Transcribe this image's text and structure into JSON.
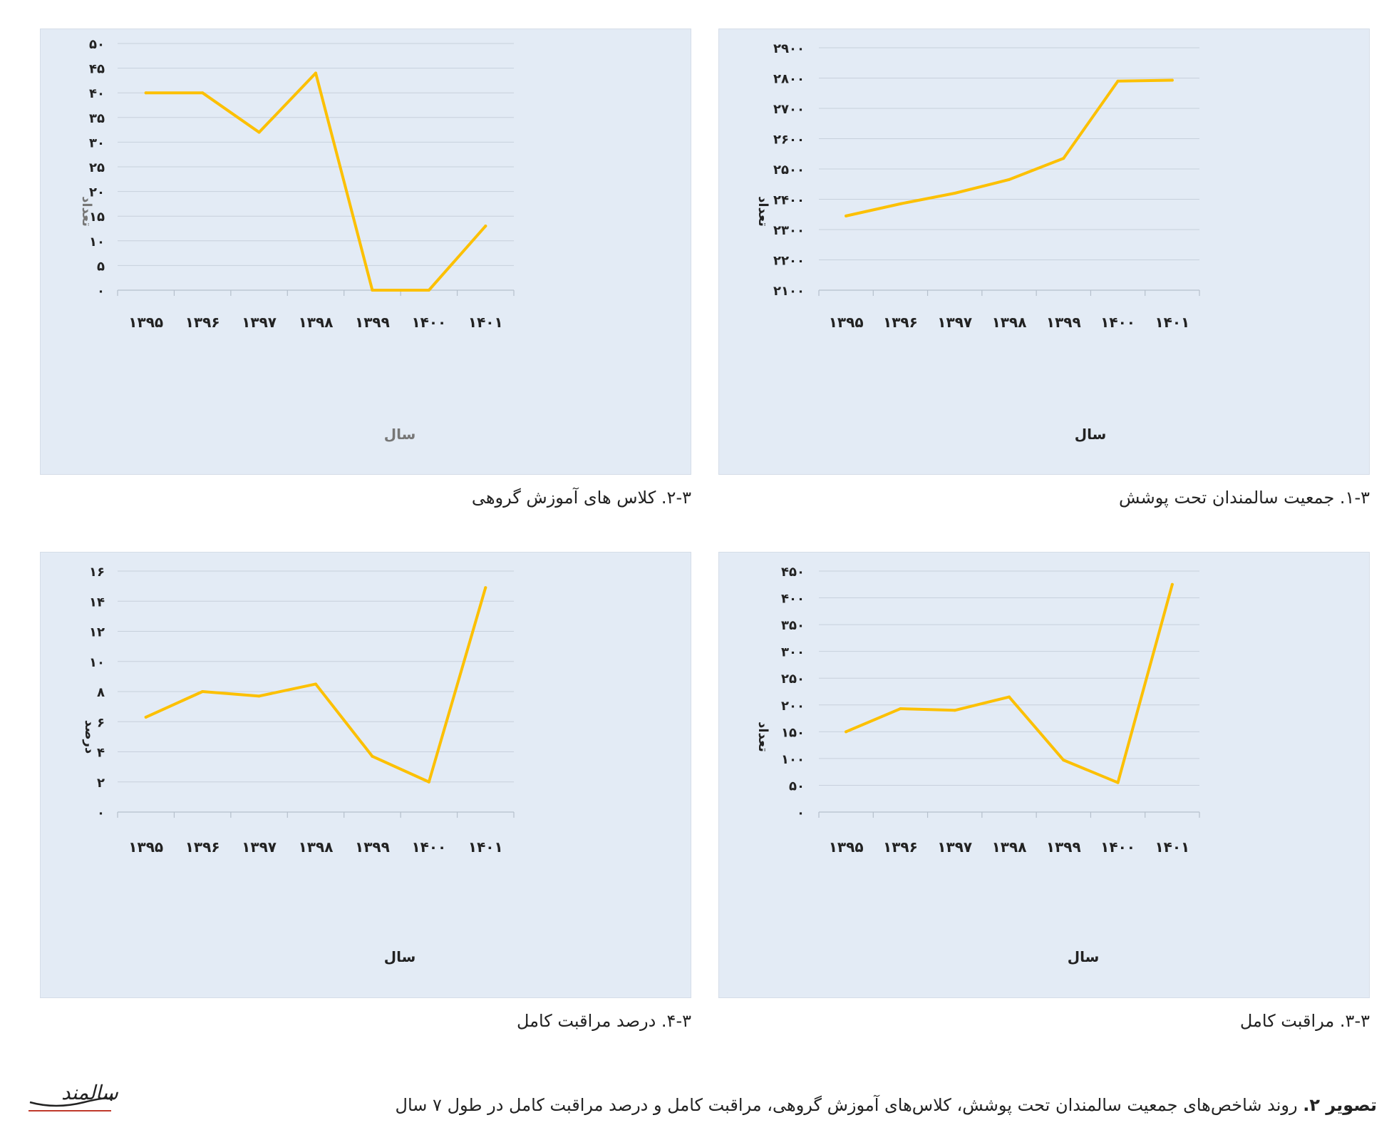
{
  "chart_data": [
    {
      "id": "c1",
      "type": "line",
      "caption": "۱-۳. جمعیت سالمندان تحت پوشش",
      "xlabel": "سال",
      "ylabel": "تعداد",
      "categories": [
        "۱۳۹۵",
        "۱۳۹۶",
        "۱۳۹۷",
        "۱۳۹۸",
        "۱۳۹۹",
        "۱۴۰۰",
        "۱۴۰۱"
      ],
      "x_values": [
        1395,
        1396,
        1397,
        1398,
        1399,
        1400,
        1401
      ],
      "yticks": [
        "۲۱۰۰",
        "۲۲۰۰",
        "۲۳۰۰",
        "۲۴۰۰",
        "۲۵۰۰",
        "۲۶۰۰",
        "۲۷۰۰",
        "۲۸۰۰",
        "۲۹۰۰"
      ],
      "ylim": [
        2100,
        2900
      ],
      "values": [
        2345,
        2385,
        2420,
        2465,
        2535,
        2790,
        2793
      ],
      "line_color": "#fcc000",
      "grid": true
    },
    {
      "id": "c2",
      "type": "line",
      "caption": "۲-۳. کلاس های آموزش گروهی",
      "xlabel": "سال",
      "ylabel": "تعداد",
      "categories": [
        "۱۳۹۵",
        "۱۳۹۶",
        "۱۳۹۷",
        "۱۳۹۸",
        "۱۳۹۹",
        "۱۴۰۰",
        "۱۴۰۱"
      ],
      "x_values": [
        1395,
        1396,
        1397,
        1398,
        1399,
        1400,
        1401
      ],
      "yticks": [
        "۰",
        "۵",
        "۱۰",
        "۱۵",
        "۲۰",
        "۲۵",
        "۳۰",
        "۳۵",
        "۴۰",
        "۴۵",
        "۵۰"
      ],
      "ylim": [
        0,
        50
      ],
      "values": [
        40,
        40,
        32,
        44,
        0,
        0,
        13
      ],
      "line_color": "#fcc000",
      "grid": true
    },
    {
      "id": "c3",
      "type": "line",
      "caption": "۳-۳. مراقبت کامل",
      "xlabel": "سال",
      "ylabel": "تعداد",
      "categories": [
        "۱۳۹۵",
        "۱۳۹۶",
        "۱۳۹۷",
        "۱۳۹۸",
        "۱۳۹۹",
        "۱۴۰۰",
        "۱۴۰۱"
      ],
      "x_values": [
        1395,
        1396,
        1397,
        1398,
        1399,
        1400,
        1401
      ],
      "yticks": [
        "۰",
        "۵۰",
        "۱۰۰",
        "۱۵۰",
        "۲۰۰",
        "۲۵۰",
        "۳۰۰",
        "۳۵۰",
        "۴۰۰",
        "۴۵۰"
      ],
      "ylim": [
        0,
        450
      ],
      "values": [
        150,
        193,
        190,
        215,
        97,
        55,
        425
      ],
      "line_color": "#fcc000",
      "grid": true
    },
    {
      "id": "c4",
      "type": "line",
      "caption": "۴-۳. درصد مراقبت کامل",
      "xlabel": "سال",
      "ylabel": "درصد",
      "categories": [
        "۱۳۹۵",
        "۱۳۹۶",
        "۱۳۹۷",
        "۱۳۹۸",
        "۱۳۹۹",
        "۱۴۰۰",
        "۱۴۰۱"
      ],
      "x_values": [
        1395,
        1396,
        1397,
        1398,
        1399,
        1400,
        1401
      ],
      "yticks": [
        "۰",
        "۲",
        "۴",
        "۶",
        "۸",
        "۱۰",
        "۱۲",
        "۱۴",
        "۱۶"
      ],
      "ylim": [
        0,
        16
      ],
      "values": [
        6.3,
        8,
        7.7,
        8.5,
        3.7,
        2,
        14.9
      ],
      "line_color": "#fcc000",
      "grid": true
    }
  ],
  "figure_caption": {
    "label": "تصویر ۲.",
    "text": " روند شاخص‌های جمعیت سالمندان تحت پوشش، کلاس‌های آموزش گروهی، مراقبت کامل و درصد مراقبت کامل در طول ۷ سال"
  },
  "logo": {
    "text": "سالمند",
    "accent_color": "#c0392b"
  }
}
